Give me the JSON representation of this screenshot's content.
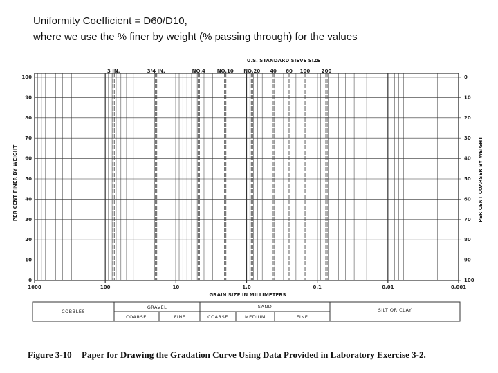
{
  "slide_text": [
    "Uniformity Coefficient = D60/D10,",
    "where we use the % finer by weight (% passing through) for the values"
  ],
  "chart_data": {
    "type": "line",
    "xlabel": "GRAIN SIZE IN MILLIMETERS",
    "ylabel": "PER CENT FINER BY WEIGHT",
    "y2label": "PER CENT COARSER BY WEIGHT",
    "x2label": "U.S. STANDARD SIEVE SIZE",
    "series": [],
    "xlim": [
      1000,
      0.001
    ],
    "xscale": "log",
    "xticks": [
      1000,
      100,
      10,
      {
        "value": 1,
        "label": "1.0"
      },
      0.1,
      0.01,
      0.001
    ],
    "x2ticks": [
      {
        "value": 76.2,
        "label": "3 IN."
      },
      {
        "value": 19.05,
        "label": "3/4 IN."
      },
      {
        "value": 4.76,
        "label": "NO.4"
      },
      {
        "value": 2.0,
        "label": "NO.10"
      },
      {
        "value": 0.84,
        "label": "NO.20"
      },
      {
        "value": 0.42,
        "label": "40"
      },
      {
        "value": 0.25,
        "label": "60"
      },
      {
        "value": 0.149,
        "label": "100"
      },
      {
        "value": 0.074,
        "label": "200"
      }
    ],
    "ylim": [
      0,
      100
    ],
    "yticks": [
      0,
      10,
      20,
      30,
      40,
      50,
      60,
      70,
      80,
      90,
      100
    ],
    "y2lim": [
      100,
      0
    ],
    "y2ticks": [
      0,
      10,
      20,
      30,
      40,
      50,
      60,
      70,
      80,
      90,
      100
    ],
    "grid": true,
    "minor_grid": true,
    "color": "#333333"
  },
  "soil_classes": {
    "cobbles": "COBBLES",
    "gravel": "GRAVEL",
    "gravel_coarse": "COARSE",
    "gravel_fine": "FINE",
    "sand": "SAND",
    "sand_coarse": "COARSE",
    "sand_medium": "MEDIUM",
    "sand_fine": "FINE",
    "silt_clay": "SILT OR CLAY"
  },
  "caption": {
    "label": "Figure 3-10",
    "text": "Paper for Drawing the Gradation Curve Using Data Provided in Laboratory Exercise 3-2."
  }
}
